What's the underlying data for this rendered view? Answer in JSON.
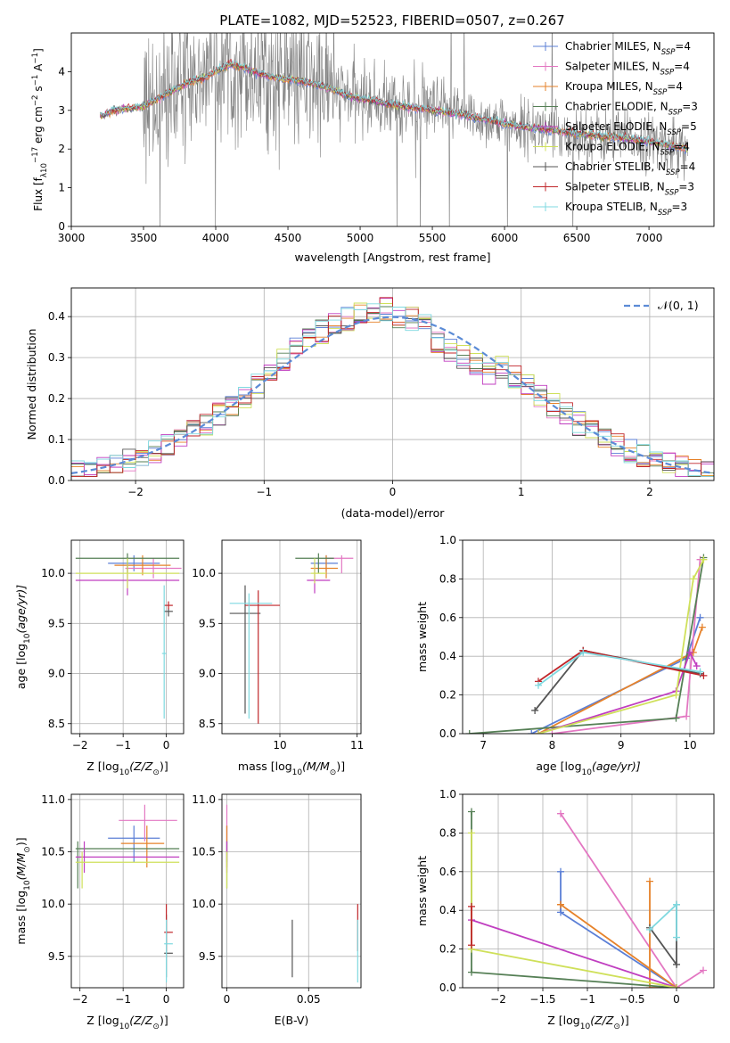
{
  "figure_title": "PLATE=1082, MJD=52523, FIBERID=0507, z=0.267",
  "colors": {
    "c_miles": "#5b7fd6",
    "s_miles": "#e377c2",
    "k_miles": "#e6822a",
    "c_elodie": "#557f55",
    "s_elodie": "#c03ec0",
    "k_elodie": "#cfe05a",
    "c_stelib": "#555555",
    "s_stelib": "#c0262a",
    "k_stelib": "#7fd9e0",
    "normal": "#5b8bd6",
    "spectrum_gray": "#808080"
  },
  "legend_spectrum": [
    {
      "key": "c_miles",
      "name": "Chabrier MILES",
      "nssp": "4"
    },
    {
      "key": "s_miles",
      "name": "Salpeter MILES",
      "nssp": "4"
    },
    {
      "key": "k_miles",
      "name": "Kroupa MILES",
      "nssp": "4"
    },
    {
      "key": "c_elodie",
      "name": "Chabrier ELODIE",
      "nssp": "3"
    },
    {
      "key": "s_elodie",
      "name": "Salpeter ELODIE",
      "nssp": "5"
    },
    {
      "key": "k_elodie",
      "name": "Kroupa ELODIE",
      "nssp": "4"
    },
    {
      "key": "c_stelib",
      "name": "Chabrier STELIB",
      "nssp": "4"
    },
    {
      "key": "s_stelib",
      "name": "Salpeter STELIB",
      "nssp": "3"
    },
    {
      "key": "k_stelib",
      "name": "Kroupa STELIB",
      "nssp": "3"
    }
  ],
  "nssp_prefix": "N",
  "nssp_sub": "SSP",
  "chart_data": [
    {
      "id": "spectrum",
      "type": "line",
      "xlabel": "wavelength [Angstrom, rest frame]",
      "ylabel_parts": [
        "Flux [f",
        "λ",
        "10",
        "−17",
        " erg cm",
        "−2",
        " s",
        "−1",
        " A",
        "−1",
        "]"
      ],
      "xlim": [
        3000,
        7450
      ],
      "ylim": [
        0,
        5
      ],
      "xticks": [
        3000,
        3500,
        4000,
        4500,
        5000,
        5500,
        6000,
        6500,
        7000
      ],
      "yticks": [
        0,
        1,
        2,
        3,
        4
      ],
      "continuum": [
        [
          3200,
          2.85
        ],
        [
          3300,
          3.0
        ],
        [
          3400,
          3.05
        ],
        [
          3500,
          3.1
        ],
        [
          3600,
          3.3
        ],
        [
          3700,
          3.5
        ],
        [
          3800,
          3.7
        ],
        [
          3900,
          3.8
        ],
        [
          4000,
          4.0
        ],
        [
          4100,
          4.2
        ],
        [
          4200,
          4.1
        ],
        [
          4300,
          3.95
        ],
        [
          4400,
          3.85
        ],
        [
          4500,
          3.8
        ],
        [
          4600,
          3.75
        ],
        [
          4700,
          3.65
        ],
        [
          4800,
          3.55
        ],
        [
          4900,
          3.4
        ],
        [
          5000,
          3.3
        ],
        [
          5100,
          3.25
        ],
        [
          5200,
          3.15
        ],
        [
          5300,
          3.1
        ],
        [
          5400,
          3.05
        ],
        [
          5500,
          3.0
        ],
        [
          5600,
          2.95
        ],
        [
          5700,
          2.9
        ],
        [
          5800,
          2.8
        ],
        [
          5900,
          2.75
        ],
        [
          6000,
          2.65
        ],
        [
          6200,
          2.55
        ],
        [
          6400,
          2.45
        ],
        [
          6600,
          2.35
        ],
        [
          6800,
          2.3
        ],
        [
          7000,
          2.2
        ],
        [
          7200,
          2.05
        ],
        [
          7270,
          2.0
        ]
      ],
      "noise_start": 3500
    },
    {
      "id": "residuals",
      "type": "step_histogram",
      "xlabel": "(data-model)/error",
      "ylabel": "Normed distribution",
      "xlim": [
        -2.5,
        2.5
      ],
      "ylim": [
        0,
        0.47
      ],
      "xticks": [
        -2,
        -1,
        0,
        1,
        2
      ],
      "yticks": [
        0.0,
        0.1,
        0.2,
        0.3,
        0.4
      ],
      "bin_width": 0.1,
      "legend_label": "𝒩(0, 1)"
    },
    {
      "id": "age_vs_Z",
      "type": "errorbar",
      "xlabel_parts": [
        "Z [log",
        "10",
        "(Z/Z",
        "⊙",
        ")]"
      ],
      "ylabel_parts": [
        "age  [log",
        "10",
        "(age/yr)]"
      ],
      "xlim": [
        -2.2,
        0.4
      ],
      "ylim": [
        8.4,
        10.33
      ],
      "xticks": [
        -2,
        -1,
        0
      ],
      "yticks": [
        8.5,
        9.0,
        9.5,
        10.0
      ],
      "points": [
        {
          "key": "c_miles",
          "x": -0.75,
          "xlo": -1.35,
          "xhi": -0.15,
          "y": 10.1,
          "ylo": 10.02,
          "yhi": 10.18
        },
        {
          "key": "s_miles",
          "x": -0.3,
          "xlo": -0.95,
          "xhi": 0.35,
          "y": 10.05,
          "ylo": 9.95,
          "yhi": 10.15
        },
        {
          "key": "k_miles",
          "x": -0.55,
          "xlo": -1.2,
          "xhi": 0.1,
          "y": 10.08,
          "ylo": 9.98,
          "yhi": 10.18
        },
        {
          "key": "c_elodie",
          "x": -0.9,
          "xlo": -2.1,
          "xhi": 0.3,
          "y": 10.15,
          "ylo": 10.0,
          "yhi": 10.2
        },
        {
          "key": "s_elodie",
          "x": -0.9,
          "xlo": -2.1,
          "xhi": 0.3,
          "y": 9.93,
          "ylo": 9.78,
          "yhi": 10.1
        },
        {
          "key": "k_elodie",
          "x": -0.9,
          "xlo": -2.1,
          "xhi": 0.3,
          "y": 10.0,
          "ylo": 9.85,
          "yhi": 10.15
        },
        {
          "key": "c_stelib",
          "x": 0.05,
          "xlo": -0.05,
          "xhi": 0.15,
          "y": 9.62,
          "ylo": 9.57,
          "yhi": 9.65
        },
        {
          "key": "s_stelib",
          "x": 0.05,
          "xlo": -0.05,
          "xhi": 0.15,
          "y": 9.68,
          "ylo": 9.64,
          "yhi": 9.72
        },
        {
          "key": "k_stelib",
          "x": -0.05,
          "xlo": -0.1,
          "xhi": 0.0,
          "y": 9.2,
          "ylo": 8.55,
          "yhi": 9.88
        }
      ]
    },
    {
      "id": "age_vs_mass",
      "type": "errorbar",
      "xlabel_parts": [
        "mass [log",
        "10",
        "(M/M",
        "⊙",
        ")]"
      ],
      "xlim": [
        9.25,
        11.05
      ],
      "ylim": [
        8.4,
        10.33
      ],
      "xticks": [
        10,
        11
      ],
      "yticks": [
        8.5,
        9.0,
        9.5,
        10.0
      ],
      "points": [
        {
          "key": "c_miles",
          "x": 10.6,
          "xlo": 10.4,
          "xhi": 10.75,
          "y": 10.1,
          "ylo": 10.02,
          "yhi": 10.18
        },
        {
          "key": "s_miles",
          "x": 10.8,
          "xlo": 10.6,
          "xhi": 10.95,
          "y": 10.15,
          "ylo": 10.0,
          "yhi": 10.18
        },
        {
          "key": "k_miles",
          "x": 10.6,
          "xlo": 10.4,
          "xhi": 10.75,
          "y": 10.05,
          "ylo": 9.95,
          "yhi": 10.18
        },
        {
          "key": "c_elodie",
          "x": 10.5,
          "xlo": 10.2,
          "xhi": 10.7,
          "y": 10.15,
          "ylo": 10.0,
          "yhi": 10.2
        },
        {
          "key": "s_elodie",
          "x": 10.45,
          "xlo": 10.35,
          "xhi": 10.65,
          "y": 9.93,
          "ylo": 9.8,
          "yhi": 10.1
        },
        {
          "key": "k_elodie",
          "x": 10.45,
          "xlo": 10.4,
          "xhi": 10.6,
          "y": 10.0,
          "ylo": 9.9,
          "yhi": 10.15
        },
        {
          "key": "c_stelib",
          "x": 9.55,
          "xlo": 9.35,
          "xhi": 9.75,
          "y": 9.6,
          "ylo": 8.6,
          "yhi": 9.88
        },
        {
          "key": "s_stelib",
          "x": 9.72,
          "xlo": 9.55,
          "xhi": 10.0,
          "y": 9.68,
          "ylo": 8.5,
          "yhi": 9.83
        },
        {
          "key": "k_stelib",
          "x": 9.6,
          "xlo": 9.35,
          "xhi": 9.9,
          "y": 9.7,
          "ylo": 8.55,
          "yhi": 9.8
        }
      ]
    },
    {
      "id": "weight_vs_age",
      "type": "line_markers",
      "xlabel_parts": [
        "age  [log",
        "10",
        "(age/yr)]"
      ],
      "ylabel": "mass weight",
      "xlim": [
        6.7,
        10.35
      ],
      "ylim": [
        0,
        1.0
      ],
      "xticks": [
        7,
        8,
        9,
        10
      ],
      "yticks": [
        0.0,
        0.2,
        0.4,
        0.6,
        0.8,
        1.0
      ],
      "series": [
        {
          "key": "c_miles",
          "x": [
            7.7,
            9.95,
            10.15
          ],
          "y": [
            0.0,
            0.39,
            0.6
          ]
        },
        {
          "key": "s_miles",
          "x": [
            8.0,
            9.95,
            10.15
          ],
          "y": [
            0.0,
            0.09,
            0.9
          ]
        },
        {
          "key": "k_miles",
          "x": [
            7.8,
            10.05,
            10.18
          ],
          "y": [
            0.0,
            0.42,
            0.55
          ]
        },
        {
          "key": "c_elodie",
          "x": [
            6.8,
            9.8,
            10.2
          ],
          "y": [
            0.0,
            0.08,
            0.91
          ]
        },
        {
          "key": "s_elodie",
          "x": [
            7.8,
            9.8,
            10.0,
            10.1
          ],
          "y": [
            0.0,
            0.22,
            0.42,
            0.35
          ]
        },
        {
          "key": "k_elodie",
          "x": [
            7.8,
            9.8,
            10.05,
            10.2
          ],
          "y": [
            0.0,
            0.2,
            0.8,
            0.9
          ]
        },
        {
          "key": "c_stelib",
          "x": [
            7.75,
            8.45,
            10.15
          ],
          "y": [
            0.12,
            0.43,
            0.31
          ]
        },
        {
          "key": "s_stelib",
          "x": [
            7.8,
            8.45,
            10.2
          ],
          "y": [
            0.27,
            0.43,
            0.3
          ]
        },
        {
          "key": "k_stelib",
          "x": [
            7.8,
            8.45,
            10.15
          ],
          "y": [
            0.25,
            0.42,
            0.32
          ]
        }
      ]
    },
    {
      "id": "mass_vs_Z",
      "type": "errorbar",
      "xlabel_parts": [
        "Z [log",
        "10",
        "(Z/Z",
        "⊙",
        ")]"
      ],
      "ylabel_parts": [
        "mass [log",
        "10",
        "(M/M",
        "⊙",
        ")]"
      ],
      "xlim": [
        -2.2,
        0.4
      ],
      "ylim": [
        9.2,
        11.05
      ],
      "xticks": [
        -2,
        -1,
        0
      ],
      "yticks": [
        9.5,
        10.0,
        10.5,
        11.0
      ],
      "points": [
        {
          "key": "c_miles",
          "x": -0.75,
          "xlo": -1.35,
          "xhi": -0.15,
          "y": 10.63,
          "ylo": 10.4,
          "yhi": 10.75
        },
        {
          "key": "s_miles",
          "x": -0.5,
          "xlo": -1.1,
          "xhi": 0.25,
          "y": 10.8,
          "ylo": 10.6,
          "yhi": 10.95
        },
        {
          "key": "k_miles",
          "x": -0.45,
          "xlo": -1.05,
          "xhi": -0.05,
          "y": 10.58,
          "ylo": 10.35,
          "yhi": 10.75
        },
        {
          "key": "c_elodie",
          "x": -2.05,
          "xlo": -2.1,
          "xhi": 0.3,
          "y": 10.53,
          "ylo": 10.15,
          "yhi": 10.6
        },
        {
          "key": "s_elodie",
          "x": -1.9,
          "xlo": -2.1,
          "xhi": 0.3,
          "y": 10.45,
          "ylo": 10.3,
          "yhi": 10.6
        },
        {
          "key": "k_elodie",
          "x": -1.95,
          "xlo": -2.1,
          "xhi": 0.3,
          "y": 10.4,
          "ylo": 10.15,
          "yhi": 10.5
        },
        {
          "key": "c_stelib",
          "x": 0.0,
          "xlo": -0.05,
          "xhi": 0.15,
          "y": 9.53,
          "ylo": 9.3,
          "yhi": 9.9
        },
        {
          "key": "s_stelib",
          "x": 0.0,
          "xlo": -0.05,
          "xhi": 0.15,
          "y": 9.73,
          "ylo": 9.55,
          "yhi": 10.0
        },
        {
          "key": "k_stelib",
          "x": 0.0,
          "xlo": -0.05,
          "xhi": 0.15,
          "y": 9.62,
          "ylo": 9.25,
          "yhi": 9.85
        }
      ]
    },
    {
      "id": "mass_vs_EBV",
      "type": "errorbar",
      "xlabel": "E(B-V)",
      "xlim": [
        -0.003,
        0.082
      ],
      "ylim": [
        9.2,
        11.05
      ],
      "xticks": [
        0.0,
        0.05
      ],
      "yticks": [
        9.5,
        10.0,
        10.5,
        11.0
      ],
      "points": [
        {
          "key": "c_miles",
          "x": 0.0,
          "xlo": 0.0,
          "xhi": 0.0,
          "y": 10.63,
          "ylo": 10.4,
          "yhi": 10.75
        },
        {
          "key": "s_miles",
          "x": 0.0,
          "xlo": 0.0,
          "xhi": 0.0,
          "y": 10.8,
          "ylo": 10.6,
          "yhi": 10.95
        },
        {
          "key": "k_miles",
          "x": 0.0,
          "xlo": 0.0,
          "xhi": 0.0,
          "y": 10.58,
          "ylo": 10.35,
          "yhi": 10.75
        },
        {
          "key": "c_elodie",
          "x": 0.0,
          "xlo": 0.0,
          "xhi": 0.0,
          "y": 10.53,
          "ylo": 10.15,
          "yhi": 10.6
        },
        {
          "key": "s_elodie",
          "x": 0.0,
          "xlo": 0.0,
          "xhi": 0.0,
          "y": 10.45,
          "ylo": 10.3,
          "yhi": 10.6
        },
        {
          "key": "k_elodie",
          "x": 0.0,
          "xlo": 0.0,
          "xhi": 0.0,
          "y": 10.4,
          "ylo": 10.15,
          "yhi": 10.5
        },
        {
          "key": "c_stelib",
          "x": 0.04,
          "xlo": 0.04,
          "xhi": 0.04,
          "y": 9.53,
          "ylo": 9.3,
          "yhi": 9.85
        },
        {
          "key": "s_stelib",
          "x": 0.08,
          "xlo": 0.08,
          "xhi": 0.08,
          "y": 9.73,
          "ylo": 9.55,
          "yhi": 10.0
        },
        {
          "key": "k_stelib",
          "x": 0.08,
          "xlo": 0.08,
          "xhi": 0.08,
          "y": 9.62,
          "ylo": 9.25,
          "yhi": 9.85
        }
      ]
    },
    {
      "id": "weight_vs_Z",
      "type": "line_markers",
      "xlabel_parts": [
        "Z [log",
        "10",
        "(Z/Z",
        "⊙",
        ")]"
      ],
      "ylabel": "mass weight",
      "xlim": [
        -2.4,
        0.42
      ],
      "ylim": [
        0,
        1.0
      ],
      "xticks": [
        -2.0,
        -1.5,
        -1.0,
        -0.5,
        0.0
      ],
      "yticks": [
        0.0,
        0.2,
        0.4,
        0.6,
        0.8,
        1.0
      ],
      "series": [
        {
          "key": "c_miles",
          "x": [
            -1.3,
            -1.3,
            0.0
          ],
          "y": [
            0.6,
            0.39,
            0.0
          ]
        },
        {
          "key": "s_miles",
          "x": [
            -1.3,
            0.0,
            0.3
          ],
          "y": [
            0.9,
            0.0,
            0.09
          ]
        },
        {
          "key": "k_miles",
          "x": [
            -0.3,
            -0.3,
            0.0,
            -1.3,
            -1.3
          ],
          "y": [
            0.55,
            0.0,
            0.0,
            0.43,
            0.43
          ]
        },
        {
          "key": "c_elodie",
          "x": [
            -2.3,
            -2.3,
            0.0
          ],
          "y": [
            0.91,
            0.08,
            0.0
          ]
        },
        {
          "key": "s_elodie",
          "x": [
            -2.3,
            0.0
          ],
          "y": [
            0.35,
            0.0
          ]
        },
        {
          "key": "k_elodie",
          "x": [
            -2.3,
            -2.3,
            0.0
          ],
          "y": [
            0.8,
            0.2,
            0.0
          ]
        },
        {
          "key": "c_stelib",
          "x": [
            0.0,
            0.0,
            -0.3
          ],
          "y": [
            0.43,
            0.12,
            0.31
          ]
        },
        {
          "key": "s_stelib",
          "x": [
            -2.3,
            -2.3
          ],
          "y": [
            0.42,
            0.22
          ]
        },
        {
          "key": "k_stelib",
          "x": [
            0.0,
            0.0,
            -0.3
          ],
          "y": [
            0.26,
            0.43,
            0.3
          ]
        }
      ]
    }
  ]
}
